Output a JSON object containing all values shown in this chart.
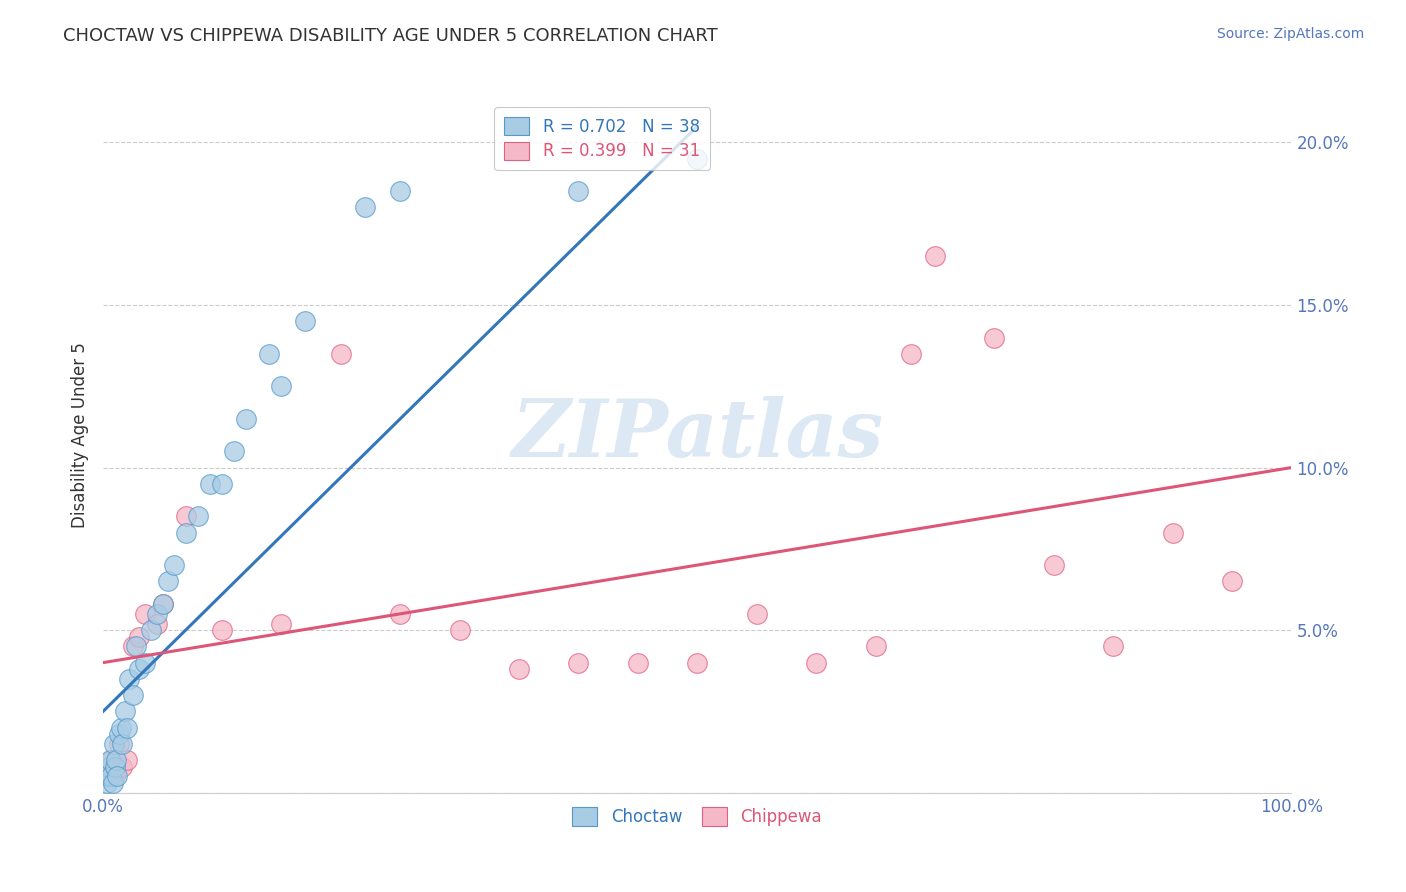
{
  "title": "CHOCTAW VS CHIPPEWA DISABILITY AGE UNDER 5 CORRELATION CHART",
  "source": "Source: ZipAtlas.com",
  "ylabel": "Disability Age Under 5",
  "xlim": [
    0,
    100
  ],
  "ylim": [
    0,
    22
  ],
  "xticks": [
    0,
    10,
    20,
    30,
    40,
    50,
    60,
    70,
    80,
    90,
    100
  ],
  "yticks": [
    0,
    5,
    10,
    15,
    20
  ],
  "xticklabels": [
    "0.0%",
    "",
    "",
    "",
    "",
    "",
    "",
    "",
    "",
    "",
    "100.0%"
  ],
  "yticklabels_right": [
    "",
    "5.0%",
    "10.0%",
    "15.0%",
    "20.0%"
  ],
  "choctaw_R": 0.702,
  "choctaw_N": 38,
  "chippewa_R": 0.399,
  "chippewa_N": 31,
  "choctaw_color": "#a8cce4",
  "chippewa_color": "#f4b8c8",
  "choctaw_edge_color": "#5599cc",
  "chippewa_edge_color": "#e06080",
  "choctaw_line_color": "#3377bb",
  "chippewa_line_color": "#dd5577",
  "background_color": "#ffffff",
  "grid_color": "#cccccc",
  "title_color": "#333333",
  "axis_label_color": "#5577bb",
  "tick_color": "#5577bb",
  "watermark_color": "#dde8f5",
  "choctaw_x": [
    0.3,
    0.4,
    0.5,
    0.6,
    0.7,
    0.8,
    0.9,
    1.0,
    1.1,
    1.2,
    1.3,
    1.5,
    1.6,
    1.8,
    2.0,
    2.2,
    2.5,
    2.8,
    3.0,
    3.5,
    4.0,
    4.5,
    5.0,
    5.5,
    6.0,
    7.0,
    8.0,
    9.0,
    10.0,
    11.0,
    12.0,
    14.0,
    15.0,
    17.0,
    22.0,
    25.0,
    40.0,
    50.0
  ],
  "choctaw_y": [
    0.3,
    0.5,
    0.8,
    1.0,
    0.5,
    0.3,
    1.5,
    0.8,
    1.0,
    0.5,
    1.8,
    2.0,
    1.5,
    2.5,
    2.0,
    3.5,
    3.0,
    4.5,
    3.8,
    4.0,
    5.0,
    5.5,
    5.8,
    6.5,
    7.0,
    8.0,
    8.5,
    9.5,
    9.5,
    10.5,
    11.5,
    13.5,
    12.5,
    14.5,
    18.0,
    18.5,
    18.5,
    19.5
  ],
  "chippewa_x": [
    0.4,
    0.7,
    1.0,
    1.3,
    1.6,
    2.0,
    2.5,
    3.0,
    3.5,
    4.5,
    5.0,
    7.0,
    10.0,
    15.0,
    20.0,
    25.0,
    30.0,
    40.0,
    50.0,
    60.0,
    65.0,
    70.0,
    75.0,
    80.0,
    85.0,
    90.0,
    95.0,
    35.0,
    45.0,
    55.0,
    68.0
  ],
  "chippewa_y": [
    0.5,
    1.0,
    0.5,
    1.5,
    0.8,
    1.0,
    4.5,
    4.8,
    5.5,
    5.2,
    5.8,
    8.5,
    5.0,
    5.2,
    13.5,
    5.5,
    5.0,
    4.0,
    4.0,
    4.0,
    4.5,
    16.5,
    14.0,
    7.0,
    4.5,
    8.0,
    6.5,
    3.8,
    4.0,
    5.5,
    13.5
  ],
  "choctaw_line_x": [
    0,
    50
  ],
  "choctaw_line_y": [
    2.5,
    20.5
  ],
  "chippewa_line_x": [
    0,
    100
  ],
  "chippewa_line_y": [
    4.0,
    10.0
  ]
}
